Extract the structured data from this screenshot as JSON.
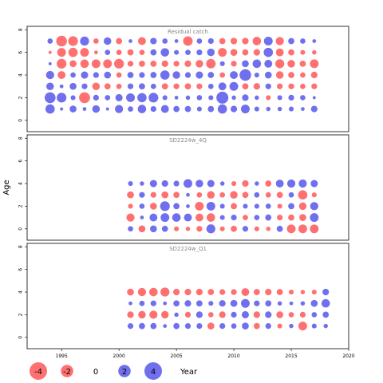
{
  "chart_data": {
    "type": "scatter",
    "ylabel": "Age",
    "xlabel": "Year",
    "xlim": [
      1992,
      2020
    ],
    "x_ticks": [
      "1995",
      "2000",
      "2005",
      "2010",
      "2015",
      "2020"
    ],
    "ylim": [
      -1,
      8.3
    ],
    "y_ticks": [
      "0",
      "2",
      "4",
      "6",
      "8"
    ],
    "colors": {
      "positive": "#7070ee",
      "negative": "#ff7070"
    },
    "legend": {
      "values": [
        -4,
        -2,
        0,
        2,
        4
      ],
      "labels": [
        "-4",
        "-2",
        "0",
        "2",
        "4"
      ],
      "placement": "bottom-left"
    },
    "panels": [
      {
        "title": "Residual catch",
        "years": [
          1994,
          1995,
          1996,
          1997,
          1998,
          1999,
          2000,
          2001,
          2002,
          2003,
          2004,
          2005,
          2006,
          2007,
          2008,
          2009,
          2010,
          2011,
          2012,
          2013,
          2014,
          2015,
          2016,
          2017
        ],
        "ages": [
          1,
          2,
          3,
          4,
          5,
          6,
          7
        ],
        "residuals": [
          [
            1.8,
            0.2,
            1.0,
            0.3,
            1.2,
            0.2,
            1.4,
            0.6,
            1.5,
            0.7,
            1.3,
            0.8,
            0.8,
            0.5,
            0.8,
            1.8,
            0.9,
            1.6,
            0.5,
            0.4,
            0.4,
            0.5,
            0.3,
            0.9
          ],
          [
            2.5,
            2.0,
            0.5,
            -2.5,
            0.7,
            0.6,
            1.1,
            1.6,
            1.8,
            2.0,
            0.5,
            0.3,
            0.4,
            0.6,
            0.5,
            3.0,
            0.4,
            0.9,
            0.4,
            -0.5,
            0.5,
            0.7,
            0.6,
            0.2
          ],
          [
            1.2,
            0.3,
            1.0,
            0.7,
            -1.2,
            -0.8,
            -0.6,
            0.7,
            0.8,
            0.6,
            -0.8,
            -0.7,
            -0.8,
            -0.7,
            0.6,
            1.3,
            1.6,
            -0.8,
            -0.9,
            0.7,
            -0.7,
            -0.7,
            -0.6,
            -0.7
          ],
          [
            1.4,
            -1.3,
            0.6,
            1.1,
            0.7,
            1.0,
            -0.6,
            0.8,
            0.7,
            0.8,
            1.8,
            1.2,
            0.7,
            1.1,
            0.8,
            -0.6,
            1.3,
            2.8,
            0.5,
            1.0,
            -1.2,
            -0.8,
            -0.6,
            -0.9
          ],
          [
            0.2,
            -2.0,
            -1.0,
            -1.5,
            -1.6,
            -1.6,
            -2.0,
            -0.7,
            -0.8,
            -0.8,
            -0.9,
            -0.7,
            -0.9,
            -1.2,
            -1.9,
            0.5,
            -0.7,
            1.0,
            1.5,
            1.3,
            -1.7,
            -1.2,
            -0.8,
            -1.6
          ],
          [
            -0.2,
            -1.6,
            -1.8,
            -1.6,
            -0.3,
            0.6,
            -0.6,
            -0.8,
            -0.6,
            0.8,
            1.5,
            0.5,
            0.6,
            0.7,
            1.2,
            -1.6,
            -1.0,
            -0.8,
            -0.9,
            1.8,
            -1.3,
            -0.8,
            -0.5,
            -0.4
          ],
          [
            0.6,
            -2.4,
            -2.0,
            1.7,
            -0.6,
            1.2,
            -0.8,
            0.3,
            -1.3,
            0.9,
            0.6,
            0.3,
            -1.9,
            0.6,
            0.7,
            -0.8,
            -0.9,
            -0.9,
            -1.5,
            1.6,
            -1.4,
            0.8,
            0.6,
            0.3
          ]
        ]
      },
      {
        "title": "SD2224w_4Q",
        "years": [
          2001,
          2002,
          2003,
          2004,
          2005,
          2006,
          2007,
          2008,
          2009,
          2010,
          2011,
          2012,
          2013,
          2014,
          2015,
          2016,
          2017
        ],
        "ages": [
          0,
          1,
          2,
          3,
          4
        ],
        "residuals": [
          [
            0.6,
            -1.0,
            1.0,
            0.8,
            -0.5,
            -0.4,
            -0.7,
            1.7,
            -0.5,
            -0.8,
            0.7,
            -0.5,
            -0.4,
            0.8,
            -1.6,
            -1.6,
            -1.6
          ],
          [
            -1.4,
            0.3,
            1.3,
            1.6,
            1.5,
            1.3,
            -1.3,
            -1.5,
            0.5,
            0.7,
            -0.6,
            0.6,
            0.8,
            -0.7,
            -0.8,
            -1.0,
            1.6
          ],
          [
            -0.5,
            0.6,
            -1.0,
            2.0,
            0.8,
            0.3,
            -1.6,
            1.6,
            0.5,
            -0.8,
            0.5,
            0.5,
            0.6,
            -0.5,
            0.8,
            -1.2,
            1.4
          ],
          [
            -1.0,
            0.7,
            -0.7,
            -1.0,
            -0.8,
            0.3,
            -0.6,
            -1.2,
            -0.6,
            -1.2,
            -0.8,
            0.6,
            -0.6,
            -0.8,
            0.6,
            -1.8,
            -0.5
          ],
          [
            0.5,
            0.4,
            1.1,
            0.9,
            0.7,
            1.6,
            1.2,
            1.1,
            0.4,
            -0.5,
            -0.9,
            0.4,
            -0.8,
            1.3,
            1.4,
            1.4,
            1.1
          ]
        ]
      },
      {
        "title": "SD2224w_Q1",
        "years": [
          2001,
          2002,
          2003,
          2004,
          2005,
          2006,
          2007,
          2008,
          2009,
          2010,
          2011,
          2012,
          2013,
          2014,
          2015,
          2016,
          2017,
          2018
        ],
        "ages": [
          1,
          2,
          3,
          4
        ],
        "residuals": [
          [
            0.7,
            0.8,
            0.8,
            0.3,
            0.8,
            0.7,
            0.7,
            -1.0,
            0.7,
            0.6,
            1.0,
            -0.8,
            0.7,
            -0.5,
            0.4,
            -1.6,
            0.5,
            0.4
          ],
          [
            -0.9,
            -1.2,
            -1.4,
            -1.2,
            0.4,
            -0.7,
            0.9,
            -0.6,
            -0.9,
            0.7,
            1.1,
            -0.9,
            0.9,
            -1.0,
            -0.6,
            -0.7,
            0.6,
            0.8
          ],
          [
            0.3,
            0.6,
            0.7,
            0.3,
            0.8,
            0.9,
            0.8,
            0.5,
            0.9,
            1.0,
            1.6,
            0.7,
            0.8,
            0.4,
            0.3,
            0.4,
            1.0,
            1.5
          ],
          [
            -1.0,
            -1.4,
            -1.5,
            -1.7,
            -0.9,
            -0.9,
            -0.9,
            -0.8,
            -0.7,
            -0.7,
            -1.3,
            -0.8,
            -0.9,
            -0.8,
            -0.5,
            -0.4,
            -0.5,
            0.9
          ]
        ]
      }
    ]
  }
}
